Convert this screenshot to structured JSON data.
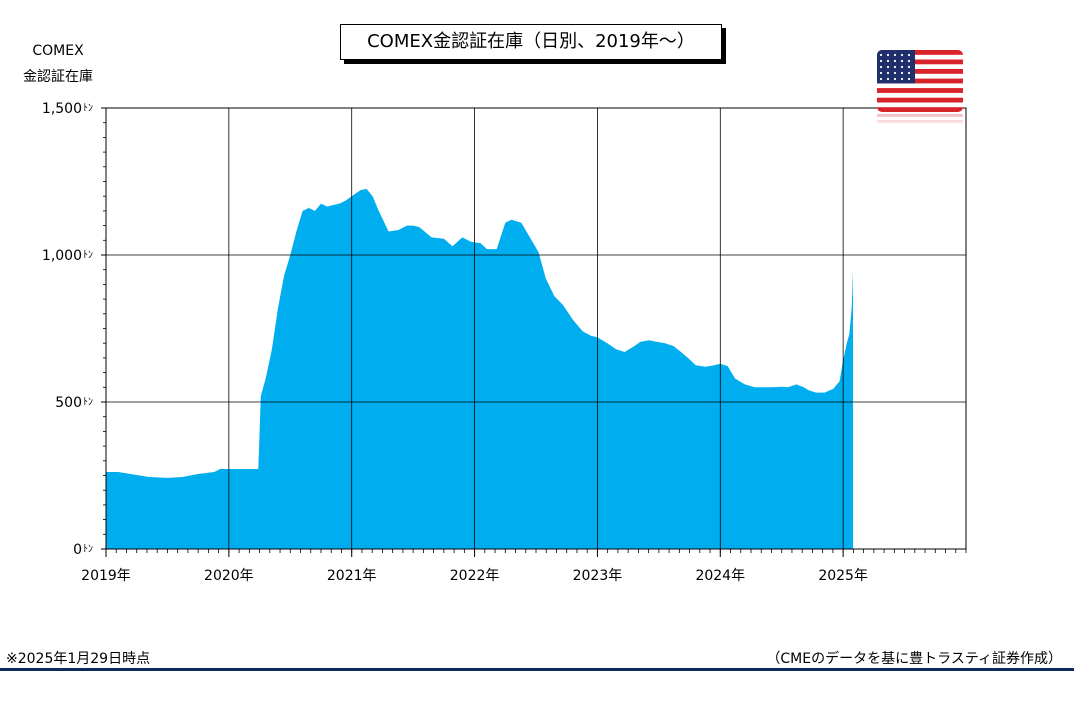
{
  "title": "COMEX金認証在庫（日別、2019年～）",
  "ylabel_line1": "COMEX",
  "ylabel_line2": "金認証在庫",
  "note": "※2025年1月29日時点",
  "source": "（CMEのデータを基に豊トラスティ証券作成）",
  "flag_icon": "us-flag-icon",
  "colors": {
    "area": "#00aeef",
    "grid": "#000000",
    "footer_rule": "#0d2a5a"
  },
  "chart_data": {
    "type": "area",
    "title": "COMEX金認証在庫（日別、2019年～）",
    "ylabel": "COMEX 金認証在庫",
    "yunit": "ﾄﾝ",
    "ylim": [
      0,
      1500
    ],
    "yticks": [
      {
        "value": 0,
        "label": "0ﾄﾝ"
      },
      {
        "value": 500,
        "label": "500ﾄﾝ"
      },
      {
        "value": 1000,
        "label": "1,000ﾄﾝ"
      },
      {
        "value": 1500,
        "label": "1,500ﾄﾝ"
      }
    ],
    "xlim": [
      2019.0,
      2026.0
    ],
    "xticks": [
      {
        "value": 2019,
        "label": "2019年"
      },
      {
        "value": 2020,
        "label": "2020年"
      },
      {
        "value": 2021,
        "label": "2021年"
      },
      {
        "value": 2022,
        "label": "2022年"
      },
      {
        "value": 2023,
        "label": "2023年"
      },
      {
        "value": 2024,
        "label": "2024年"
      },
      {
        "value": 2025,
        "label": "2025年"
      }
    ],
    "grid": true,
    "series": [
      {
        "color": "#00aeef",
        "points": [
          [
            2019.0,
            262
          ],
          [
            2019.1,
            262
          ],
          [
            2019.2,
            255
          ],
          [
            2019.35,
            245
          ],
          [
            2019.5,
            242
          ],
          [
            2019.62,
            245
          ],
          [
            2019.75,
            255
          ],
          [
            2019.88,
            262
          ],
          [
            2019.93,
            272
          ],
          [
            2020.05,
            272
          ],
          [
            2020.15,
            272
          ],
          [
            2020.24,
            272
          ],
          [
            2020.26,
            520
          ],
          [
            2020.3,
            580
          ],
          [
            2020.35,
            680
          ],
          [
            2020.4,
            820
          ],
          [
            2020.45,
            930
          ],
          [
            2020.5,
            1000
          ],
          [
            2020.55,
            1080
          ],
          [
            2020.6,
            1150
          ],
          [
            2020.65,
            1160
          ],
          [
            2020.7,
            1150
          ],
          [
            2020.75,
            1175
          ],
          [
            2020.8,
            1165
          ],
          [
            2020.85,
            1170
          ],
          [
            2020.9,
            1175
          ],
          [
            2020.95,
            1185
          ],
          [
            2021.0,
            1200
          ],
          [
            2021.07,
            1220
          ],
          [
            2021.12,
            1225
          ],
          [
            2021.17,
            1200
          ],
          [
            2021.22,
            1150
          ],
          [
            2021.3,
            1080
          ],
          [
            2021.38,
            1085
          ],
          [
            2021.45,
            1100
          ],
          [
            2021.5,
            1100
          ],
          [
            2021.55,
            1095
          ],
          [
            2021.65,
            1060
          ],
          [
            2021.75,
            1055
          ],
          [
            2021.82,
            1030
          ],
          [
            2021.9,
            1060
          ],
          [
            2021.97,
            1045
          ],
          [
            2022.05,
            1040
          ],
          [
            2022.1,
            1020
          ],
          [
            2022.18,
            1020
          ],
          [
            2022.25,
            1110
          ],
          [
            2022.3,
            1120
          ],
          [
            2022.38,
            1110
          ],
          [
            2022.45,
            1060
          ],
          [
            2022.52,
            1010
          ],
          [
            2022.58,
            920
          ],
          [
            2022.65,
            860
          ],
          [
            2022.72,
            830
          ],
          [
            2022.8,
            780
          ],
          [
            2022.88,
            740
          ],
          [
            2022.95,
            725
          ],
          [
            2023.0,
            720
          ],
          [
            2023.08,
            700
          ],
          [
            2023.15,
            680
          ],
          [
            2023.22,
            670
          ],
          [
            2023.3,
            690
          ],
          [
            2023.35,
            705
          ],
          [
            2023.42,
            710
          ],
          [
            2023.48,
            705
          ],
          [
            2023.55,
            700
          ],
          [
            2023.62,
            690
          ],
          [
            2023.68,
            670
          ],
          [
            2023.75,
            645
          ],
          [
            2023.8,
            625
          ],
          [
            2023.88,
            620
          ],
          [
            2023.95,
            625
          ],
          [
            2024.0,
            630
          ],
          [
            2024.06,
            622
          ],
          [
            2024.12,
            580
          ],
          [
            2024.2,
            560
          ],
          [
            2024.28,
            550
          ],
          [
            2024.35,
            550
          ],
          [
            2024.42,
            550
          ],
          [
            2024.5,
            552
          ],
          [
            2024.55,
            550
          ],
          [
            2024.62,
            560
          ],
          [
            2024.68,
            550
          ],
          [
            2024.72,
            540
          ],
          [
            2024.78,
            532
          ],
          [
            2024.85,
            532
          ],
          [
            2024.92,
            545
          ],
          [
            2024.97,
            570
          ],
          [
            2025.0,
            640
          ],
          [
            2025.03,
            700
          ],
          [
            2025.05,
            730
          ],
          [
            2025.07,
            820
          ],
          [
            2025.08,
            945
          ]
        ]
      }
    ]
  }
}
